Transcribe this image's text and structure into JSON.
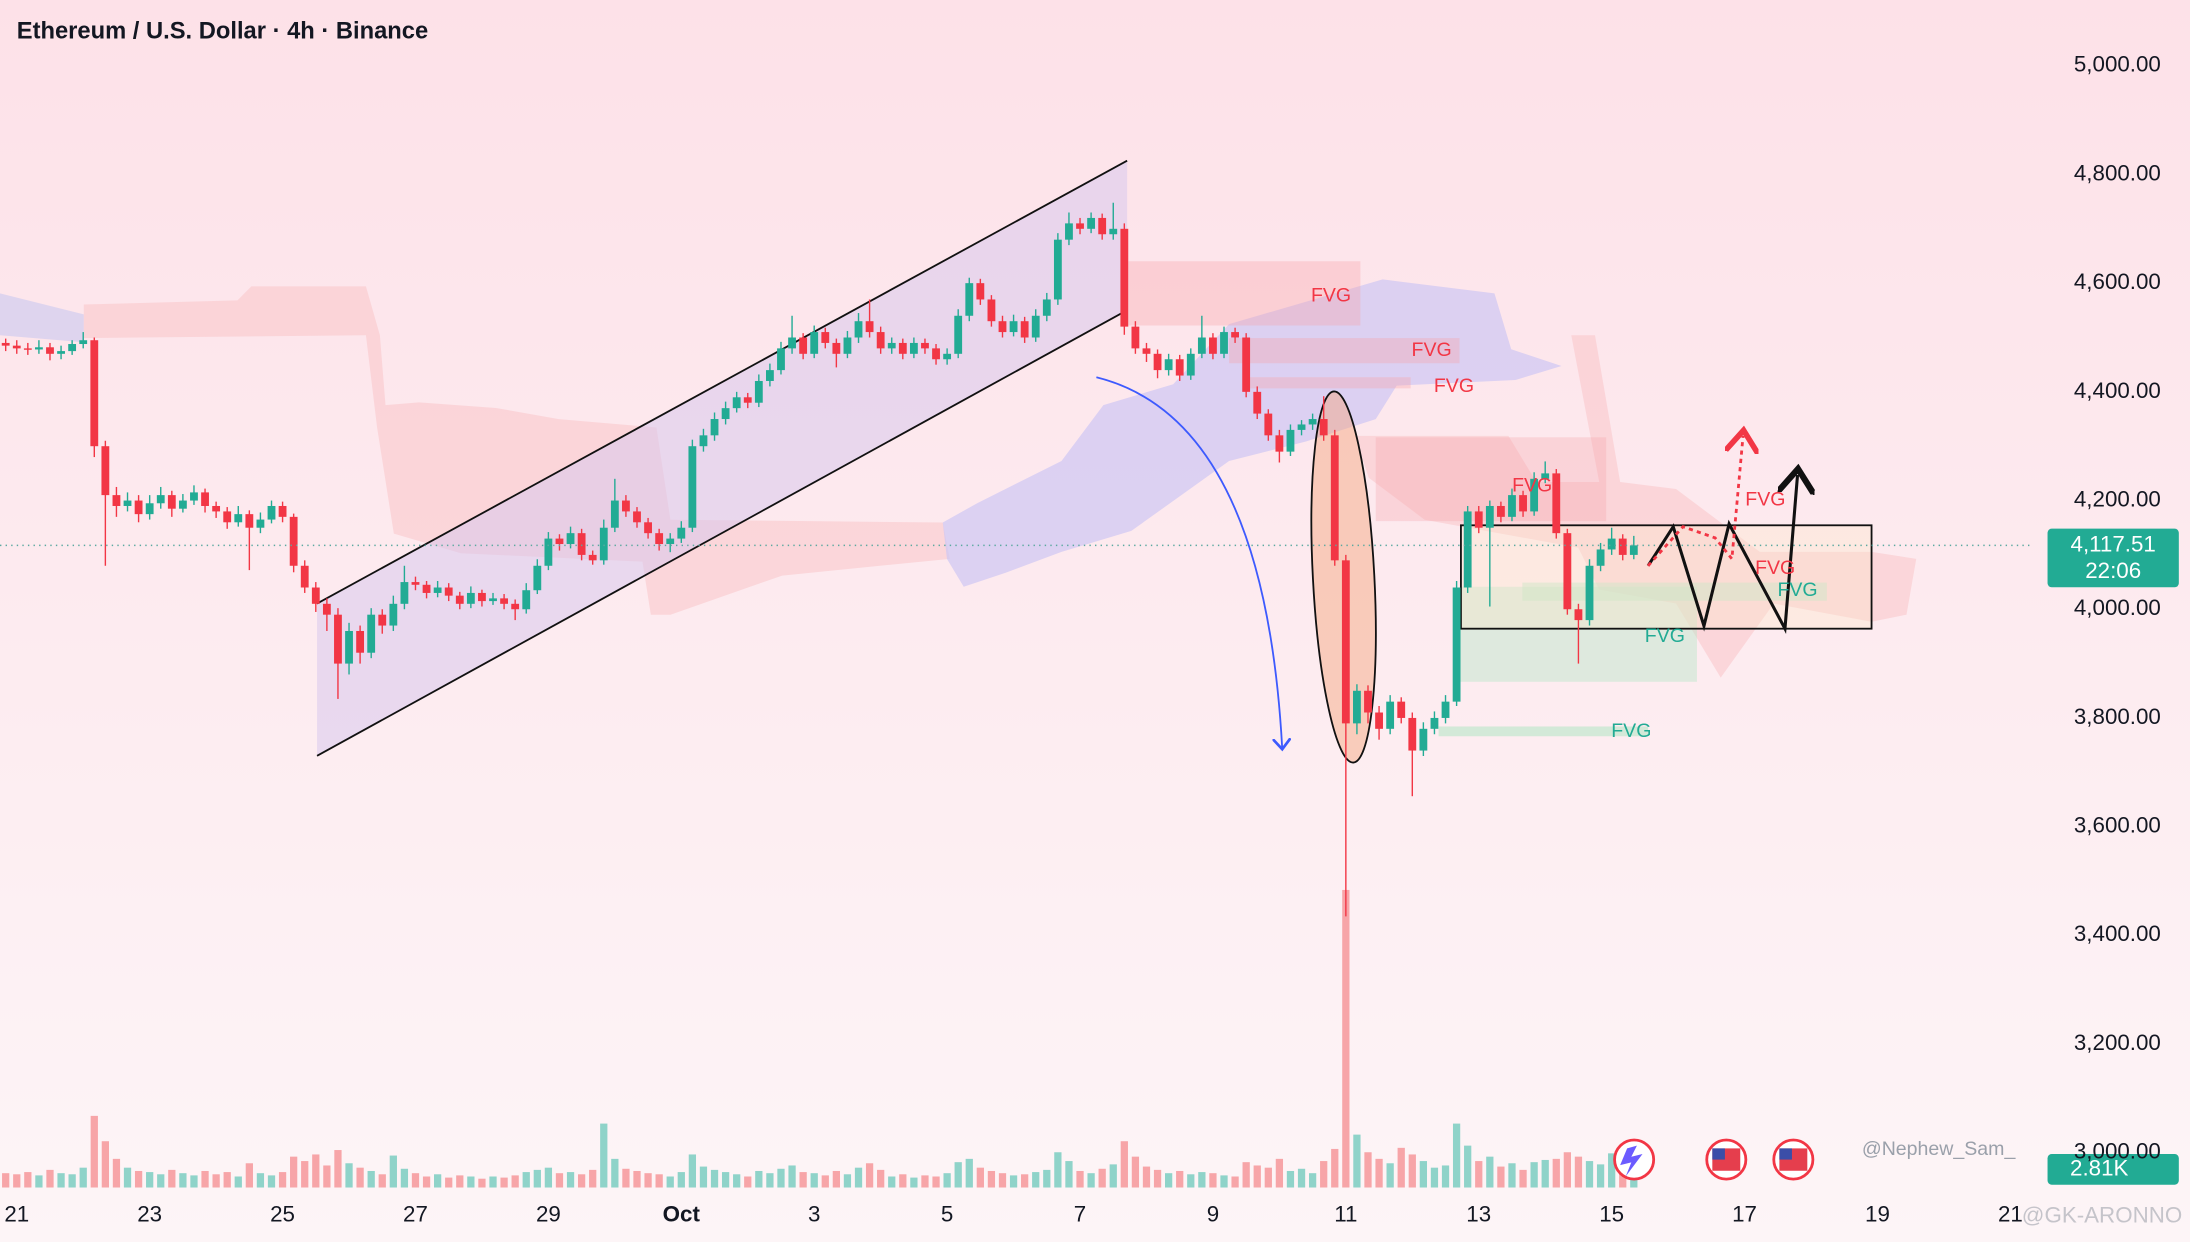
{
  "chart_data": {
    "type": "candlestick",
    "title": "Ethereum / U.S. Dollar · 4h · Binance",
    "categories": [
      null,
      null,
      "21",
      null,
      null,
      null,
      null,
      null,
      null,
      null,
      null,
      null,
      null,
      null,
      "23",
      null,
      null,
      null,
      null,
      null,
      null,
      null,
      null,
      null,
      null,
      null,
      "25",
      null,
      null,
      null,
      null,
      null,
      null,
      null,
      null,
      null,
      null,
      null,
      "27",
      null,
      null,
      null,
      null,
      null,
      null,
      null,
      null,
      null,
      null,
      null,
      "29",
      null,
      null,
      null,
      null,
      null,
      null,
      null,
      null,
      null,
      null,
      null,
      "Oct",
      null,
      null,
      null,
      null,
      null,
      null,
      null,
      null,
      null,
      null,
      null,
      "3",
      null,
      null,
      null,
      null,
      null,
      null,
      null,
      null,
      null,
      null,
      null,
      "5",
      null,
      null,
      null,
      null,
      null,
      null,
      null,
      null,
      null,
      null,
      null,
      "7",
      null,
      null,
      null,
      null,
      null,
      null,
      null,
      null,
      null,
      null,
      null,
      "9",
      null,
      null,
      null,
      null,
      null,
      null,
      null,
      null,
      null,
      null,
      null,
      "11",
      null,
      null,
      null,
      null,
      null,
      null,
      null,
      null,
      null,
      null,
      null,
      "13",
      null,
      null,
      null,
      null,
      null,
      null,
      null,
      null,
      null,
      null,
      null,
      "15",
      null,
      null,
      null,
      null,
      null,
      null,
      null,
      null,
      null,
      null,
      null,
      "17",
      null,
      null,
      null,
      null,
      null,
      null,
      null,
      null,
      null,
      null,
      null,
      "19",
      null,
      null,
      null,
      null,
      null,
      null,
      null,
      null,
      null,
      null,
      null,
      "21"
    ],
    "ohlc": [
      [
        4495,
        4505,
        4480,
        4490
      ],
      [
        4490,
        4498,
        4475,
        4485
      ],
      [
        4485,
        4495,
        4470,
        4480
      ],
      [
        4480,
        4490,
        4468,
        4478
      ],
      [
        4478,
        4495,
        4470,
        4482
      ],
      [
        4482,
        4490,
        4458,
        4470
      ],
      [
        4470,
        4485,
        4460,
        4475
      ],
      [
        4475,
        4495,
        4468,
        4488
      ],
      [
        4488,
        4510,
        4480,
        4495
      ],
      [
        4495,
        4500,
        4280,
        4300
      ],
      [
        4300,
        4310,
        4080,
        4210
      ],
      [
        4210,
        4225,
        4170,
        4190
      ],
      [
        4190,
        4215,
        4180,
        4200
      ],
      [
        4200,
        4210,
        4160,
        4175
      ],
      [
        4175,
        4210,
        4165,
        4195
      ],
      [
        4195,
        4225,
        4185,
        4210
      ],
      [
        4210,
        4218,
        4170,
        4185
      ],
      [
        4185,
        4212,
        4178,
        4200
      ],
      [
        4200,
        4228,
        4192,
        4215
      ],
      [
        4215,
        4222,
        4178,
        4190
      ],
      [
        4190,
        4198,
        4168,
        4180
      ],
      [
        4180,
        4188,
        4148,
        4160
      ],
      [
        4160,
        4190,
        4152,
        4175
      ],
      [
        4175,
        4182,
        4072,
        4150
      ],
      [
        4150,
        4178,
        4140,
        4165
      ],
      [
        4165,
        4200,
        4158,
        4190
      ],
      [
        4190,
        4198,
        4160,
        4170
      ],
      [
        4170,
        4176,
        4068,
        4080
      ],
      [
        4080,
        4090,
        4030,
        4040
      ],
      [
        4040,
        4050,
        3995,
        4010
      ],
      [
        4010,
        4020,
        3960,
        3990
      ],
      [
        3990,
        4002,
        3835,
        3900
      ],
      [
        3900,
        3975,
        3880,
        3960
      ],
      [
        3960,
        3970,
        3900,
        3920
      ],
      [
        3920,
        4002,
        3910,
        3990
      ],
      [
        3990,
        4000,
        3955,
        3970
      ],
      [
        3970,
        4025,
        3960,
        4010
      ],
      [
        4010,
        4080,
        4000,
        4050
      ],
      [
        4050,
        4060,
        4035,
        4045
      ],
      [
        4045,
        4052,
        4020,
        4030
      ],
      [
        4030,
        4052,
        4022,
        4040
      ],
      [
        4040,
        4048,
        4015,
        4025
      ],
      [
        4025,
        4032,
        4000,
        4010
      ],
      [
        4010,
        4042,
        4002,
        4030
      ],
      [
        4030,
        4036,
        4005,
        4015
      ],
      [
        4015,
        4030,
        4008,
        4020
      ],
      [
        4020,
        4028,
        4000,
        4010
      ],
      [
        4010,
        4018,
        3980,
        4000
      ],
      [
        4000,
        4048,
        3992,
        4035
      ],
      [
        4035,
        4092,
        4028,
        4080
      ],
      [
        4080,
        4142,
        4072,
        4130
      ],
      [
        4130,
        4138,
        4108,
        4120
      ],
      [
        4120,
        4152,
        4112,
        4140
      ],
      [
        4140,
        4148,
        4090,
        4100
      ],
      [
        4100,
        4108,
        4082,
        4090
      ],
      [
        4090,
        4165,
        4082,
        4150
      ],
      [
        4150,
        4240,
        4142,
        4200
      ],
      [
        4200,
        4210,
        4170,
        4180
      ],
      [
        4180,
        4188,
        4150,
        4160
      ],
      [
        4160,
        4168,
        4130,
        4140
      ],
      [
        4140,
        4148,
        4108,
        4120
      ],
      [
        4120,
        4140,
        4105,
        4130
      ],
      [
        4130,
        4162,
        4122,
        4150
      ],
      [
        4150,
        4312,
        4142,
        4300
      ],
      [
        4300,
        4332,
        4290,
        4320
      ],
      [
        4320,
        4362,
        4310,
        4350
      ],
      [
        4350,
        4382,
        4340,
        4370
      ],
      [
        4370,
        4400,
        4362,
        4390
      ],
      [
        4390,
        4398,
        4370,
        4380
      ],
      [
        4380,
        4432,
        4372,
        4420
      ],
      [
        4420,
        4452,
        4410,
        4440
      ],
      [
        4440,
        4492,
        4432,
        4480
      ],
      [
        4480,
        4540,
        4470,
        4500
      ],
      [
        4500,
        4508,
        4460,
        4470
      ],
      [
        4470,
        4522,
        4462,
        4510
      ],
      [
        4510,
        4518,
        4480,
        4490
      ],
      [
        4490,
        4498,
        4445,
        4470
      ],
      [
        4470,
        4512,
        4462,
        4500
      ],
      [
        4500,
        4545,
        4490,
        4530
      ],
      [
        4530,
        4570,
        4500,
        4510
      ],
      [
        4510,
        4520,
        4470,
        4480
      ],
      [
        4480,
        4500,
        4470,
        4490
      ],
      [
        4490,
        4498,
        4460,
        4470
      ],
      [
        4470,
        4500,
        4462,
        4490
      ],
      [
        4490,
        4498,
        4470,
        4480
      ],
      [
        4480,
        4488,
        4450,
        4460
      ],
      [
        4460,
        4480,
        4450,
        4470
      ],
      [
        4470,
        4552,
        4462,
        4540
      ],
      [
        4540,
        4610,
        4530,
        4600
      ],
      [
        4600,
        4608,
        4560,
        4570
      ],
      [
        4570,
        4578,
        4520,
        4530
      ],
      [
        4530,
        4540,
        4500,
        4510
      ],
      [
        4510,
        4542,
        4502,
        4530
      ],
      [
        4530,
        4538,
        4490,
        4500
      ],
      [
        4500,
        4552,
        4492,
        4540
      ],
      [
        4540,
        4582,
        4530,
        4570
      ],
      [
        4570,
        4692,
        4560,
        4680
      ],
      [
        4680,
        4730,
        4670,
        4710
      ],
      [
        4710,
        4720,
        4690,
        4700
      ],
      [
        4700,
        4730,
        4692,
        4720
      ],
      [
        4720,
        4728,
        4680,
        4690
      ],
      [
        4690,
        4748,
        4680,
        4700
      ],
      [
        4700,
        4710,
        4505,
        4520
      ],
      [
        4520,
        4530,
        4470,
        4480
      ],
      [
        4480,
        4490,
        4455,
        4470
      ],
      [
        4470,
        4478,
        4425,
        4440
      ],
      [
        4440,
        4470,
        4430,
        4460
      ],
      [
        4460,
        4468,
        4420,
        4430
      ],
      [
        4430,
        4480,
        4422,
        4470
      ],
      [
        4470,
        4540,
        4462,
        4500
      ],
      [
        4500,
        4508,
        4460,
        4470
      ],
      [
        4470,
        4520,
        4462,
        4510
      ],
      [
        4510,
        4518,
        4490,
        4500
      ],
      [
        4500,
        4508,
        4390,
        4400
      ],
      [
        4400,
        4410,
        4350,
        4360
      ],
      [
        4360,
        4368,
        4310,
        4320
      ],
      [
        4320,
        4330,
        4270,
        4290
      ],
      [
        4290,
        4340,
        4282,
        4330
      ],
      [
        4330,
        4348,
        4320,
        4340
      ],
      [
        4340,
        4360,
        4330,
        4350
      ],
      [
        4350,
        4392,
        4310,
        4320
      ],
      [
        4320,
        4330,
        4080,
        4090
      ],
      [
        4090,
        4100,
        3435,
        3790
      ],
      [
        3790,
        3862,
        3770,
        3850
      ],
      [
        3850,
        3860,
        3790,
        3810
      ],
      [
        3810,
        3822,
        3760,
        3780
      ],
      [
        3780,
        3842,
        3770,
        3830
      ],
      [
        3830,
        3838,
        3790,
        3800
      ],
      [
        3800,
        3810,
        3656,
        3740
      ],
      [
        3740,
        3792,
        3730,
        3780
      ],
      [
        3780,
        3812,
        3770,
        3800
      ],
      [
        3800,
        3842,
        3790,
        3830
      ],
      [
        3830,
        4052,
        3822,
        4040
      ],
      [
        4040,
        4190,
        4030,
        4180
      ],
      [
        4180,
        4190,
        4140,
        4150
      ],
      [
        4150,
        4200,
        4005,
        4190
      ],
      [
        4190,
        4198,
        4160,
        4170
      ],
      [
        4170,
        4222,
        4162,
        4210
      ],
      [
        4210,
        4218,
        4170,
        4180
      ],
      [
        4180,
        4252,
        4172,
        4240
      ],
      [
        4240,
        4272,
        4232,
        4250
      ],
      [
        4250,
        4258,
        4130,
        4140
      ],
      [
        4140,
        4148,
        3990,
        4000
      ],
      [
        4000,
        4010,
        3900,
        3980
      ],
      [
        3980,
        4092,
        3970,
        4080
      ],
      [
        4080,
        4122,
        4070,
        4110
      ],
      [
        4110,
        4150,
        4100,
        4130
      ],
      [
        4130,
        4138,
        4090,
        4100
      ],
      [
        4100,
        4135,
        4092,
        4117.51
      ],
      null,
      null,
      null,
      null,
      null,
      null,
      null,
      null,
      null,
      null,
      null,
      null,
      null,
      null,
      null,
      null,
      null,
      null,
      null,
      null,
      null,
      null,
      null,
      null,
      null,
      null,
      null,
      null,
      null,
      null,
      null,
      null,
      null,
      null
    ],
    "volume": [
      1500,
      1300,
      1200,
      1400,
      1100,
      1600,
      1300,
      1200,
      1800,
      6500,
      4200,
      2600,
      1800,
      1500,
      1400,
      1200,
      1600,
      1300,
      1100,
      1500,
      1200,
      1400,
      1000,
      2200,
      1300,
      1100,
      1400,
      2800,
      2400,
      3000,
      2000,
      3400,
      2200,
      1800,
      1500,
      1200,
      2900,
      1700,
      1300,
      1000,
      1200,
      900,
      1100,
      1000,
      800,
      1000,
      900,
      1100,
      1400,
      1600,
      1800,
      1300,
      1400,
      1200,
      1600,
      5800,
      2600,
      1700,
      1500,
      1300,
      1200,
      1000,
      1400,
      3000,
      1900,
      1600,
      1400,
      1200,
      1000,
      1500,
      1300,
      1700,
      2000,
      1400,
      1300,
      1100,
      1500,
      1200,
      1800,
      2200,
      1600,
      1000,
      1200,
      900,
      1100,
      1000,
      1300,
      2300,
      2600,
      1800,
      1500,
      1300,
      1100,
      1200,
      1400,
      1600,
      3200,
      2400,
      1500,
      1300,
      1700,
      2100,
      4200,
      2800,
      1900,
      1600,
      1300,
      1500,
      1200,
      1400,
      1300,
      1100,
      1000,
      2300,
      2000,
      1800,
      2600,
      1500,
      1700,
      1300,
      2400,
      3500,
      27000,
      4800,
      3200,
      2600,
      2200,
      3600,
      3000,
      2400,
      1800,
      2000,
      5800,
      3800,
      2400,
      2800,
      1900,
      2200,
      1600,
      2300,
      2500,
      2600,
      3200,
      2800,
      2400,
      2100,
      3100,
      2400,
      2810,
      null,
      null,
      null,
      null,
      null,
      null,
      null,
      null,
      null,
      null,
      null,
      null,
      null,
      null,
      null,
      null,
      null,
      null,
      null,
      null,
      null,
      null,
      null,
      null,
      null,
      null,
      null,
      null,
      null,
      null,
      null,
      null,
      null,
      null
    ],
    "up_color": "#22ab94",
    "down_color": "#f23645",
    "volume_up_color": "#8fd3c9",
    "volume_down_color": "#f7a5a8",
    "ylim": [
      2936,
      5121
    ],
    "yticks": [
      {
        "value": 3000,
        "label": "3,000.00"
      },
      {
        "value": 3200,
        "label": "3,200.00"
      },
      {
        "value": 3400,
        "label": "3,400.00"
      },
      {
        "value": 3600,
        "label": "3,600.00"
      },
      {
        "value": 3800,
        "label": "3,800.00"
      },
      {
        "value": 4000,
        "label": "4,000.00"
      },
      {
        "value": 4200,
        "label": "4,200.00"
      },
      {
        "value": 4400,
        "label": "4,400.00"
      },
      {
        "value": 4600,
        "label": "4,600.00"
      },
      {
        "value": 4800,
        "label": "4,800.00"
      },
      {
        "value": 5000,
        "label": "5,000.00"
      }
    ],
    "price_badge": {
      "label": "4,117.51",
      "countdown": "22:06"
    },
    "volume_badge_label": "2.81K",
    "annotations": [
      "FVG",
      "FVG",
      "FVG",
      "FVG",
      "FVG",
      "FVG",
      "FVG",
      "FVG",
      "FVG"
    ],
    "watermarks": [
      "@Nephew_Sam_",
      "@GK-ARONNO"
    ]
  }
}
